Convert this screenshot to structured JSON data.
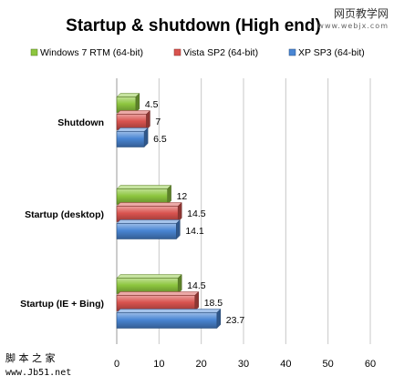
{
  "watermarks": {
    "top_right": "网页教学网",
    "top_right_site": "www.webjx.com",
    "bottom_left": "脚 本 之 家",
    "bottom_left_site": "www.Jb51.net"
  },
  "chart_data": {
    "type": "bar",
    "orientation": "horizontal",
    "title": "Startup & shutdown (High end)",
    "xlabel": "",
    "ylabel": "",
    "xlim": [
      0,
      60
    ],
    "xticks": [
      0,
      10,
      20,
      30,
      40,
      50,
      60
    ],
    "grid": true,
    "legend_position": "top",
    "categories": [
      "Shutdown",
      "Startup (desktop)",
      "Startup (IE + Bing)"
    ],
    "series": [
      {
        "name": "Windows 7 RTM (64-bit)",
        "color": "#8dc63f",
        "values": [
          4.5,
          12,
          14.5
        ],
        "labels": [
          "4.5",
          "12",
          "14.5"
        ]
      },
      {
        "name": "Vista SP2 (64-bit)",
        "color": "#d9534f",
        "values": [
          7,
          14.5,
          18.5
        ],
        "labels": [
          "7",
          "14.5",
          "18.5"
        ]
      },
      {
        "name": "XP SP3 (64-bit)",
        "color": "#4a86d4",
        "values": [
          6.5,
          14.1,
          23.7
        ],
        "labels": [
          "6.5",
          "14.1",
          "23.7"
        ]
      }
    ]
  }
}
